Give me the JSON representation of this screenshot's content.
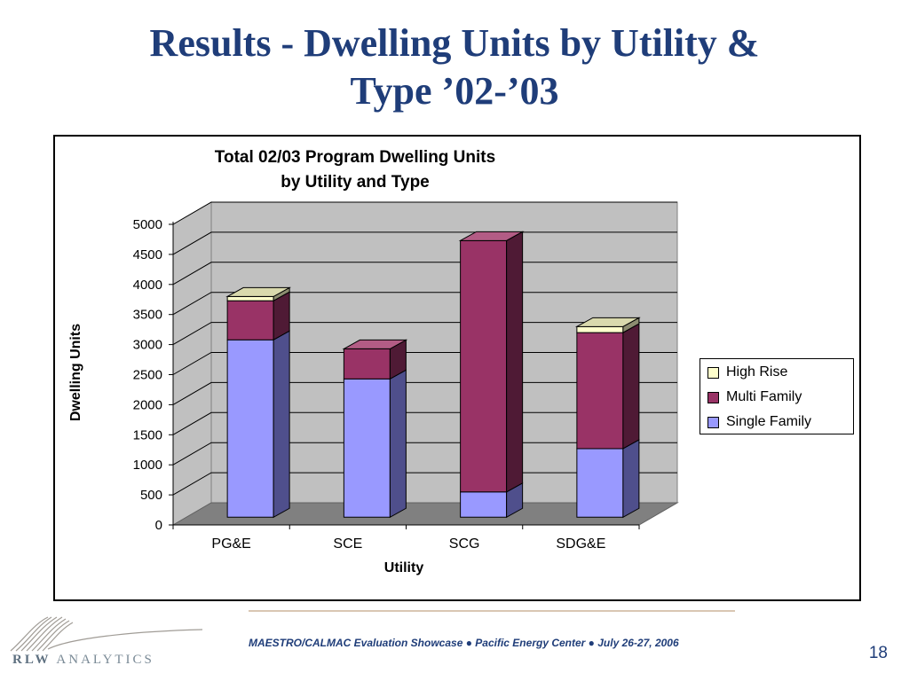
{
  "slide": {
    "title_line1": "Results - Dwelling Units by Utility &",
    "title_line2": "Type ’02-’03"
  },
  "chart_data": {
    "type": "bar",
    "stacked": true,
    "style": "3d",
    "title_line1": "Total 02/03 Program Dwelling Units",
    "title_line2": "by Utility and  Type",
    "xlabel": "Utility",
    "ylabel": "Dwelling Units",
    "categories": [
      "PG&E",
      "SCE",
      "SCG",
      "SDG&E"
    ],
    "ylim": [
      0,
      5000
    ],
    "yticks": [
      0,
      500,
      1000,
      1500,
      2000,
      2500,
      3000,
      3500,
      4000,
      4500,
      5000
    ],
    "grid": true,
    "legend_position": "right",
    "series": [
      {
        "name": "Single Family",
        "values": [
          2950,
          2300,
          420,
          1140
        ],
        "color": "#9999ff",
        "side": "#4f4f8c",
        "top": "#b8b8ff"
      },
      {
        "name": "Multi Family",
        "values": [
          650,
          500,
          4180,
          1930
        ],
        "color": "#993366",
        "side": "#4f1a35",
        "top": "#b35c85"
      },
      {
        "name": "High Rise",
        "values": [
          70,
          0,
          0,
          100
        ],
        "color": "#ffffcc",
        "side": "#8c8c70",
        "top": "#d9d9ad"
      }
    ],
    "legend": [
      "High Rise",
      "Multi Family",
      "Single Family"
    ]
  },
  "colors": {
    "title": "#1f3d79",
    "wall": "#c0c0c0",
    "floor": "#808080"
  },
  "footer": {
    "text": "MAESTRO/CALMAC Evaluation Showcase ●  Pacific Energy Center    ●   July 26-27, 2006",
    "page_number": "18",
    "logo_rlw": "RLW",
    "logo_analytics": "ANALYTICS"
  }
}
